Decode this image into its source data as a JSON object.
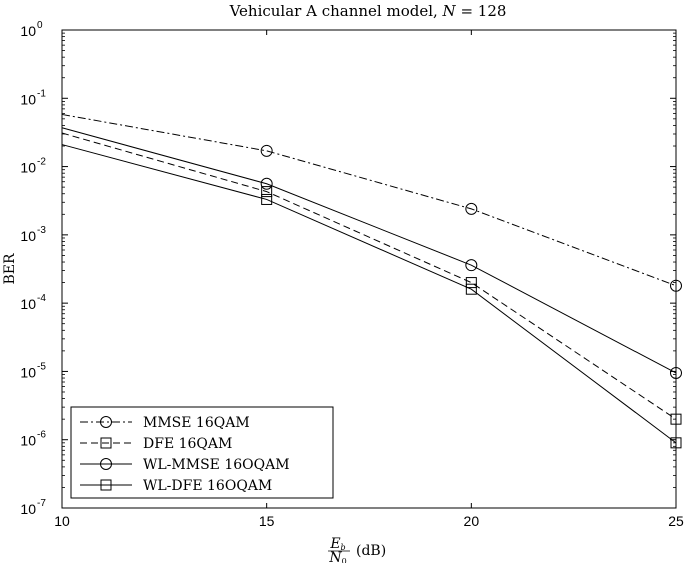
{
  "chart_data": {
    "type": "line",
    "title": "Vehicular A channel model, N = 128",
    "title_parts": [
      "Vehicular A channel model, ",
      "N",
      " = 128"
    ],
    "xlabel": "Eb/N0 (dB)",
    "xlabel_parts": {
      "num": "E",
      "num_sub": "b",
      "den": "N",
      "den_sub": "0",
      "unit": "(dB)"
    },
    "ylabel": "BER",
    "xlim": [
      10,
      25
    ],
    "ylim": [
      1e-07,
      1
    ],
    "yscale": "log",
    "x_ticks": [
      10,
      15,
      20,
      25
    ],
    "x_tick_labels": [
      "10",
      "15",
      "20",
      "25"
    ],
    "y_tick_exponents": [
      0,
      -1,
      -2,
      -3,
      -4,
      -5,
      -6,
      -7
    ],
    "y_tick_base": "10",
    "grid": false,
    "legend_position": "bottom-left",
    "series": [
      {
        "name": "MMSE 16QAM",
        "line": "dashdot",
        "marker": "circle",
        "x": [
          10,
          15,
          20,
          25
        ],
        "y": [
          0.058,
          0.017,
          0.0024,
          0.00018
        ]
      },
      {
        "name": "DFE 16QAM",
        "line": "dashed",
        "marker": "square",
        "x": [
          10,
          15,
          20,
          25
        ],
        "y": [
          0.031,
          0.0043,
          0.0002,
          2e-06
        ]
      },
      {
        "name": "WL-MMSE 16OQAM",
        "line": "solid",
        "marker": "circle",
        "x": [
          10,
          15,
          20,
          25
        ],
        "y": [
          0.037,
          0.0056,
          0.00036,
          9.5e-06
        ]
      },
      {
        "name": "WL-DFE 16OQAM",
        "line": "solid",
        "marker": "square",
        "x": [
          10,
          15,
          20,
          25
        ],
        "y": [
          0.021,
          0.0033,
          0.00016,
          9e-07
        ]
      }
    ]
  }
}
